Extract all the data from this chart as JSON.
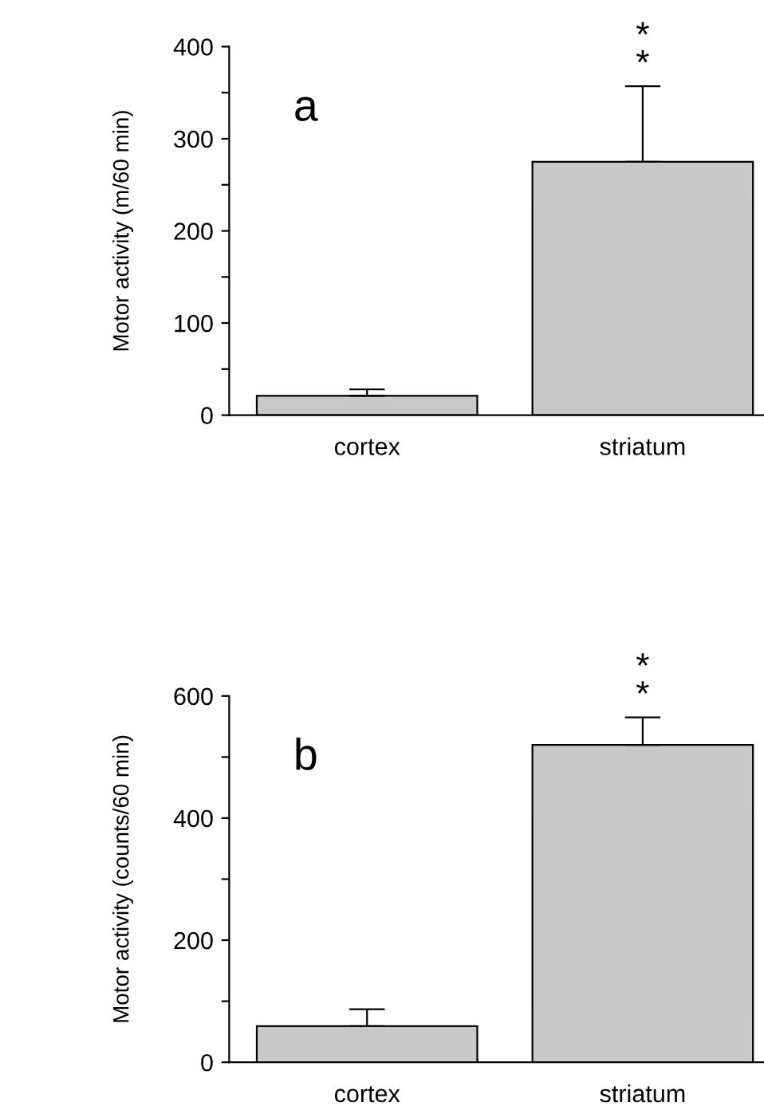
{
  "chart_data": [
    {
      "type": "bar",
      "ylabel": "Motor activity (m/60 min)",
      "categories": [
        "cortex",
        "striatum"
      ],
      "values": [
        21,
        275
      ],
      "errors": [
        [
          21,
          28
        ],
        [
          275,
          357
        ]
      ],
      "color": "#c8c8c8",
      "ylim": [
        0,
        400
      ],
      "yticks": [
        0,
        {
          "value": 50,
          "label": null
        },
        100,
        {
          "value": 150,
          "label": null
        },
        200,
        {
          "value": 250,
          "label": null
        },
        300,
        {
          "value": 350,
          "label": null
        },
        400
      ],
      "grid": false,
      "legend": false,
      "annotations": [
        "a",
        {
          "text": "*\n*",
          "x": "striatum",
          "y": 357
        }
      ]
    },
    {
      "type": "bar",
      "ylabel": "Motor activity (counts/60 min)",
      "categories": [
        "cortex",
        "striatum"
      ],
      "values": [
        59,
        520
      ],
      "errors": [
        [
          59,
          87
        ],
        [
          520,
          565
        ]
      ],
      "color": "#c8c8c8",
      "ylim": [
        0,
        600
      ],
      "yticks": [
        0,
        {
          "value": 100,
          "label": null
        },
        200,
        {
          "value": 300,
          "label": null
        },
        400,
        {
          "value": 500,
          "label": null
        },
        600
      ],
      "grid": false,
      "legend": false,
      "annotations": [
        "b",
        {
          "text": "*\n*",
          "x": "striatum",
          "y": 565
        }
      ]
    }
  ]
}
